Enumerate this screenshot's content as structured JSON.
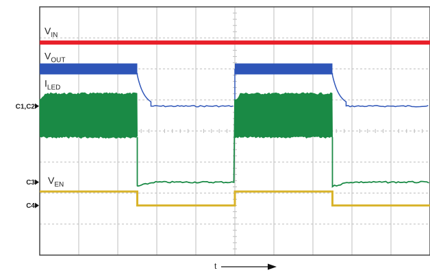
{
  "chart_data": {
    "type": "line",
    "x_axis_label": "t",
    "grid": true,
    "grid_divisions": {
      "x": 10,
      "y": 8
    },
    "period_divisions": 5,
    "first_high_start_div": 0,
    "high_duration_div": 2.5,
    "series": [
      {
        "name": "V",
        "subscript": "IN",
        "color": "#e8202a",
        "baseline_div": 1.15,
        "shape": "constant-dc"
      },
      {
        "name": "V",
        "subscript": "OUT",
        "color": "#2e55b8",
        "high_div": 2.0,
        "low_div": 3.2,
        "shape": "pwm-rc-decay"
      },
      {
        "name": "I",
        "subscript": "LED",
        "color": "#1a8a45",
        "high_top_div": 2.8,
        "high_bottom_div": 4.2,
        "low_div": 5.65,
        "shape": "pwm-switching-band"
      },
      {
        "name": "V",
        "subscript": "EN",
        "color": "#d8b32a",
        "high_div": 5.95,
        "low_div": 6.4,
        "shape": "pwm-square"
      }
    ],
    "channel_markers": [
      {
        "label": "C1,C2",
        "level_div": 3.2
      },
      {
        "label": "C3",
        "level_div": 5.65
      },
      {
        "label": "C4",
        "level_div": 6.4
      }
    ]
  }
}
